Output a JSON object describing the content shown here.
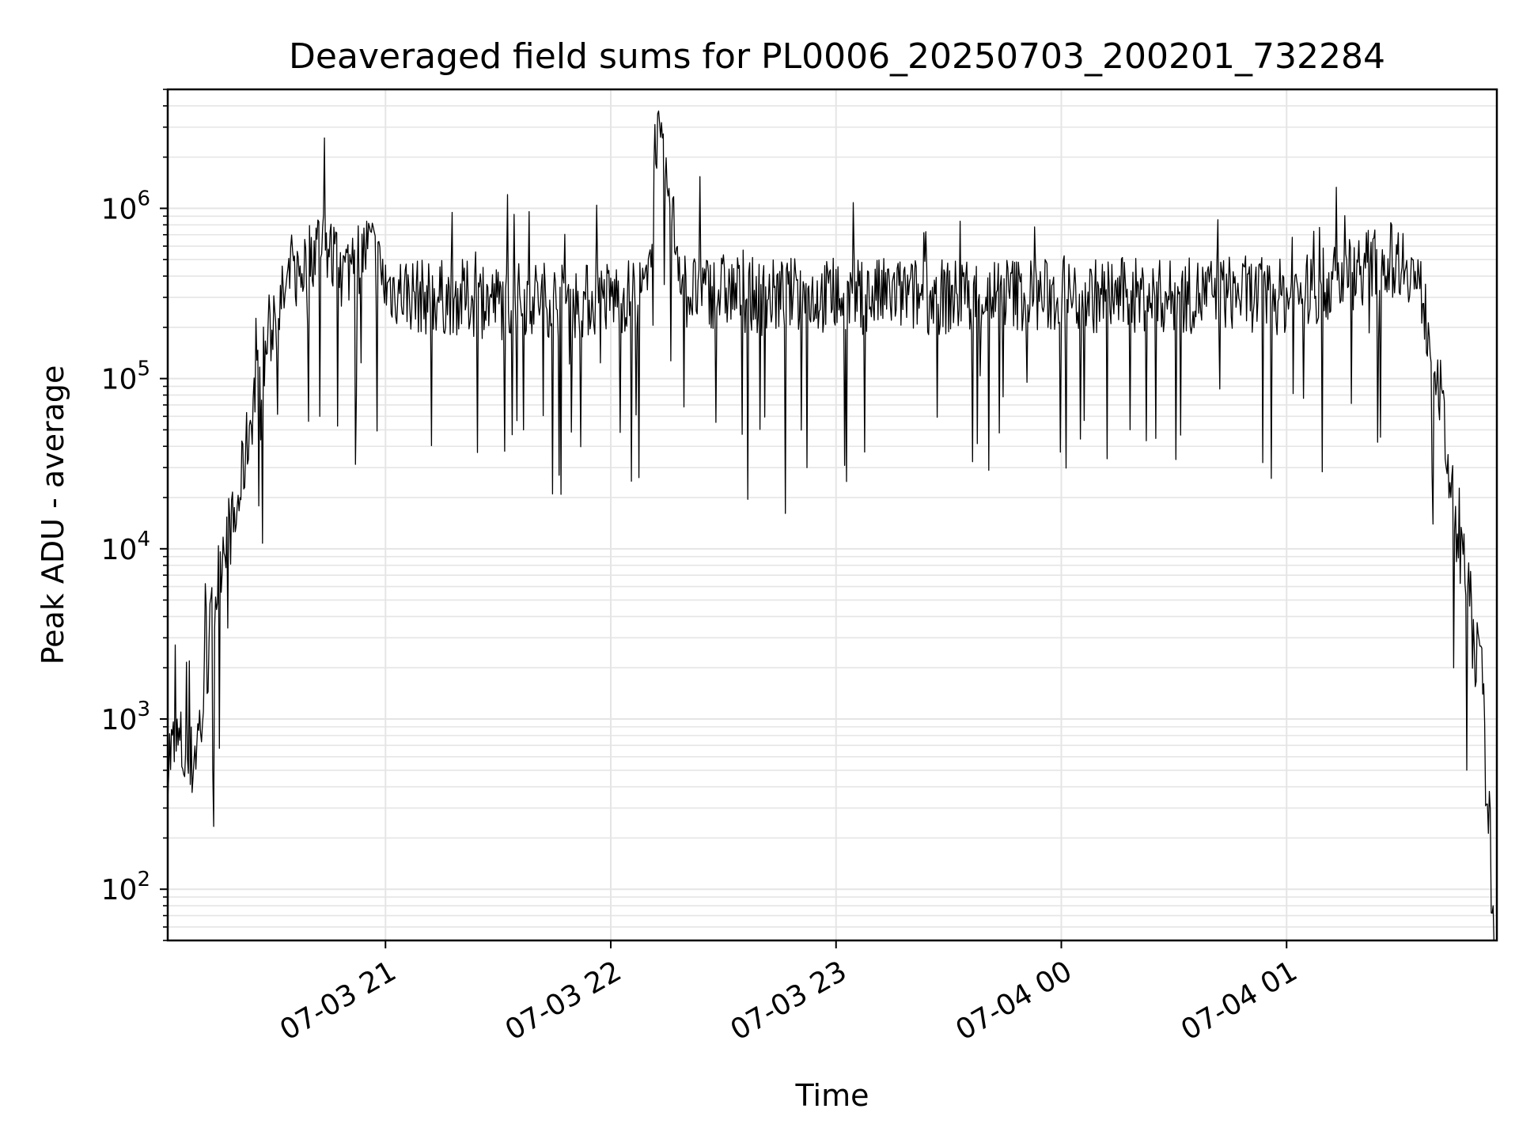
{
  "chart_data": {
    "type": "line",
    "title": "Deaveraged field sums for PL0006_20250703_200201_732284",
    "xlabel": "Time",
    "ylabel": "Peak ADU - average",
    "yscale": "log",
    "ylim": [
      50,
      5000000
    ],
    "xlim": [
      "2025-07-03 20:02",
      "2025-07-04 01:56"
    ],
    "x_ticks": [
      {
        "label": "07-03 21",
        "t": "2025-07-03 21:00"
      },
      {
        "label": "07-03 22",
        "t": "2025-07-03 22:00"
      },
      {
        "label": "07-03 23",
        "t": "2025-07-03 23:00"
      },
      {
        "label": "07-04 00",
        "t": "2025-07-04 00:00"
      },
      {
        "label": "07-04 01",
        "t": "2025-07-04 01:00"
      }
    ],
    "y_ticks": [
      {
        "base": "10",
        "exp": "2",
        "value": 100
      },
      {
        "base": "10",
        "exp": "3",
        "value": 1000
      },
      {
        "base": "10",
        "exp": "4",
        "value": 10000
      },
      {
        "base": "10",
        "exp": "5",
        "value": 100000
      },
      {
        "base": "10",
        "exp": "6",
        "value": 1000000
      }
    ],
    "grid": true,
    "line_color": "#000000",
    "grid_color": "#e5e5e5",
    "series": [
      {
        "x": [
          "2025-07-03 20:02",
          "2025-07-03 20:05",
          "2025-07-03 20:08",
          "2025-07-03 20:11",
          "2025-07-03 20:14",
          "2025-07-03 20:17",
          "2025-07-03 20:20",
          "2025-07-03 20:25",
          "2025-07-03 20:30",
          "2025-07-03 20:34",
          "2025-07-03 20:38",
          "2025-07-03 20:43",
          "2025-07-03 20:48",
          "2025-07-03 20:52",
          "2025-07-03 20:56",
          "2025-07-03 21:00",
          "2025-07-03 21:10",
          "2025-07-03 21:20",
          "2025-07-03 21:30",
          "2025-07-03 21:40",
          "2025-07-03 21:50",
          "2025-07-03 22:00",
          "2025-07-03 22:10",
          "2025-07-03 22:12",
          "2025-07-03 22:20",
          "2025-07-03 22:30",
          "2025-07-03 22:40",
          "2025-07-03 22:50",
          "2025-07-03 23:00",
          "2025-07-03 23:15",
          "2025-07-03 23:30",
          "2025-07-03 23:45",
          "2025-07-04 00:00",
          "2025-07-04 00:15",
          "2025-07-04 00:30",
          "2025-07-04 00:45",
          "2025-07-04 01:00",
          "2025-07-04 01:10",
          "2025-07-04 01:20",
          "2025-07-04 01:27",
          "2025-07-04 01:32",
          "2025-07-04 01:36",
          "2025-07-04 01:40",
          "2025-07-04 01:44",
          "2025-07-04 01:48",
          "2025-07-04 01:52",
          "2025-07-04 01:55"
        ],
        "values": [
          600,
          700,
          500,
          1000,
          4000,
          12000,
          14000,
          80000,
          200000,
          350000,
          450000,
          700000,
          400000,
          500000,
          600000,
          350000,
          300000,
          300000,
          280000,
          300000,
          280000,
          300000,
          320000,
          2900000,
          320000,
          330000,
          300000,
          310000,
          300000,
          310000,
          300000,
          320000,
          300000,
          310000,
          300000,
          320000,
          300000,
          350000,
          450000,
          500000,
          500000,
          300000,
          120000,
          20000,
          6000,
          1500,
          80
        ]
      }
    ]
  }
}
